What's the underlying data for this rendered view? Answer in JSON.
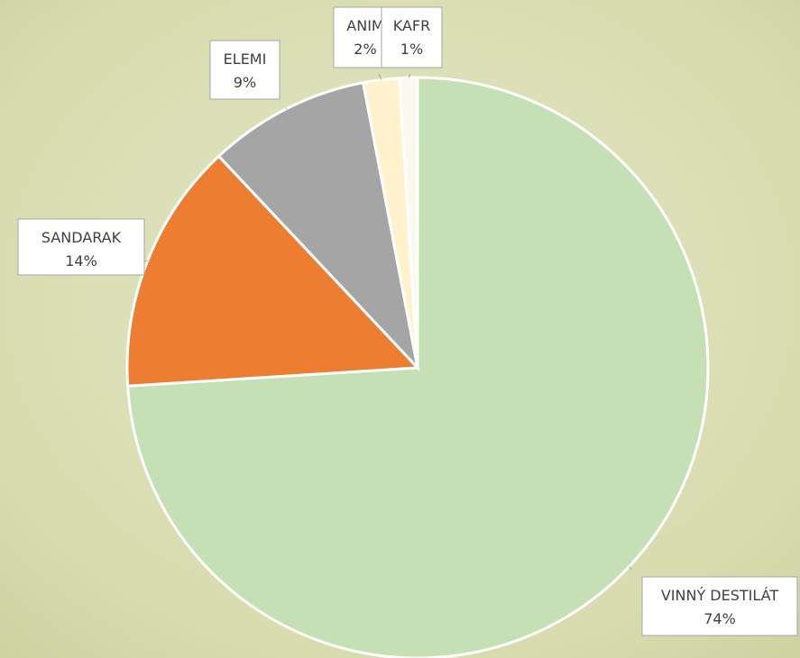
{
  "chart_data": {
    "type": "pie",
    "categories": [
      "VINNÝ DESTILÁT",
      "SANDARAK",
      "ELEMI",
      "ANIM",
      "KAFR"
    ],
    "values": [
      74,
      14,
      9,
      2,
      1
    ],
    "value_labels": [
      "74%",
      "14%",
      "9%",
      "2%",
      "1%"
    ],
    "colors": [
      "#c5e0b4",
      "#ed7d31",
      "#a5a5a5",
      "#fff2cc",
      "#fbf9ee"
    ]
  }
}
